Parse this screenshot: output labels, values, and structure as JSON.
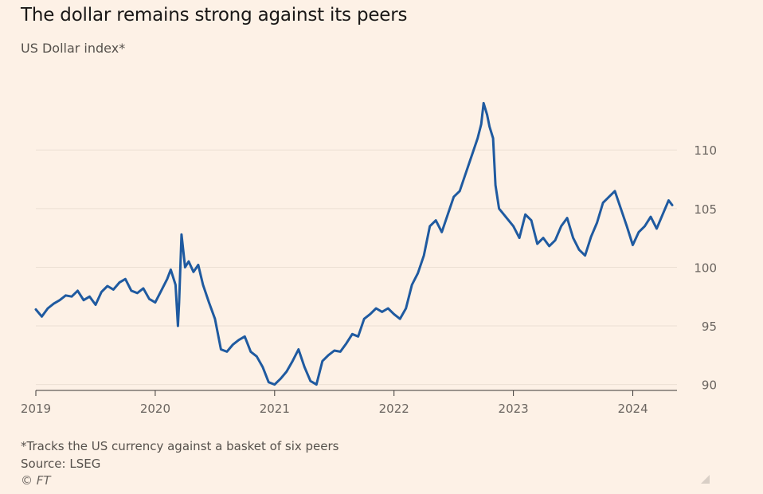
{
  "title": "The dollar remains strong against its peers",
  "subtitle": "US Dollar index*",
  "footnote": "*Tracks the US currency against a basket of six peers",
  "source": "Source: LSEG",
  "credit": "© FT",
  "colors": {
    "background": "#fdf1e6",
    "line": "#1f5aa0",
    "grid": "#ece0d4",
    "axis_text": "#6b6560"
  },
  "chart_data": {
    "type": "line",
    "title": "The dollar remains strong against its peers",
    "subtitle": "US Dollar index*",
    "xlabel": "",
    "ylabel": "",
    "ylim": [
      89.5,
      114.5
    ],
    "xlim": [
      2019.0,
      2024.37
    ],
    "yticks": [
      90,
      95,
      100,
      105,
      110
    ],
    "xticks": [
      2019,
      2020,
      2021,
      2022,
      2023,
      2024
    ],
    "grid": true,
    "y_axis_position": "right",
    "series": [
      {
        "x": [
          2019.0,
          2019.05,
          2019.1,
          2019.15,
          2019.2,
          2019.25,
          2019.3,
          2019.35,
          2019.4,
          2019.45,
          2019.5,
          2019.55,
          2019.6,
          2019.65,
          2019.7,
          2019.75,
          2019.8,
          2019.85,
          2019.9,
          2019.95,
          2020.0,
          2020.05,
          2020.1,
          2020.13,
          2020.17,
          2020.19,
          2020.2,
          2020.22,
          2020.25,
          2020.28,
          2020.32,
          2020.36,
          2020.4,
          2020.45,
          2020.5,
          2020.55,
          2020.6,
          2020.65,
          2020.7,
          2020.75,
          2020.8,
          2020.85,
          2020.9,
          2020.95,
          2021.0,
          2021.05,
          2021.1,
          2021.15,
          2021.2,
          2021.25,
          2021.3,
          2021.35,
          2021.4,
          2021.45,
          2021.5,
          2021.55,
          2021.6,
          2021.65,
          2021.7,
          2021.75,
          2021.8,
          2021.85,
          2021.9,
          2021.95,
          2022.0,
          2022.05,
          2022.1,
          2022.15,
          2022.2,
          2022.25,
          2022.3,
          2022.35,
          2022.4,
          2022.45,
          2022.5,
          2022.55,
          2022.6,
          2022.65,
          2022.7,
          2022.73,
          2022.75,
          2022.78,
          2022.8,
          2022.83,
          2022.85,
          2022.88,
          2022.92,
          2022.96,
          2023.0,
          2023.05,
          2023.1,
          2023.15,
          2023.2,
          2023.25,
          2023.3,
          2023.35,
          2023.4,
          2023.45,
          2023.5,
          2023.55,
          2023.6,
          2023.65,
          2023.7,
          2023.75,
          2023.8,
          2023.85,
          2023.9,
          2023.95,
          2024.0,
          2024.05,
          2024.1,
          2024.15,
          2024.2,
          2024.25,
          2024.3,
          2024.33
        ],
        "values": [
          96.4,
          95.8,
          96.5,
          96.9,
          97.2,
          97.6,
          97.5,
          98.0,
          97.2,
          97.5,
          96.8,
          97.9,
          98.4,
          98.1,
          98.7,
          99.0,
          98.0,
          97.8,
          98.2,
          97.3,
          97.0,
          98.0,
          99.0,
          99.8,
          98.5,
          95.0,
          97.0,
          102.8,
          100.0,
          100.5,
          99.6,
          100.2,
          98.5,
          97.0,
          95.6,
          93.0,
          92.8,
          93.4,
          93.8,
          94.1,
          92.8,
          92.4,
          91.5,
          90.2,
          90.0,
          90.5,
          91.1,
          92.0,
          93.0,
          91.5,
          90.3,
          90.0,
          92.0,
          92.5,
          92.9,
          92.8,
          93.5,
          94.3,
          94.1,
          95.6,
          96.0,
          96.5,
          96.2,
          96.5,
          96.0,
          95.6,
          96.5,
          98.5,
          99.5,
          101.0,
          103.5,
          104.0,
          103.0,
          104.5,
          106.0,
          106.5,
          108.0,
          109.5,
          111.0,
          112.2,
          114.0,
          113.0,
          112.0,
          111.0,
          107.0,
          105.0,
          104.5,
          104.0,
          103.5,
          102.5,
          104.5,
          104.0,
          102.0,
          102.5,
          101.8,
          102.3,
          103.5,
          104.2,
          102.5,
          101.5,
          101.0,
          102.6,
          103.8,
          105.5,
          106.0,
          106.5,
          105.0,
          103.5,
          101.9,
          103.0,
          103.5,
          104.3,
          103.3,
          104.5,
          105.7,
          105.3
        ],
        "color": "#1f5aa0"
      }
    ]
  }
}
